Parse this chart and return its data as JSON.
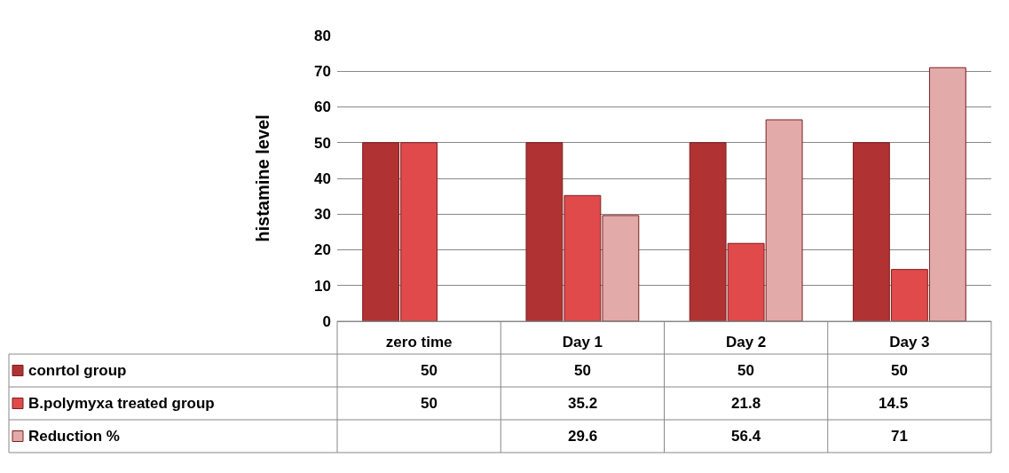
{
  "chart_data": {
    "type": "bar",
    "ylabel": "histamine level",
    "categories": [
      "zero time",
      "Day 1",
      "Day 2",
      "Day 3"
    ],
    "series": [
      {
        "name": "conrtol group",
        "color": "#b03232",
        "values": [
          50,
          50,
          50,
          50
        ]
      },
      {
        "name": "B.polymyxa treated group",
        "color": "#e04a4a",
        "values": [
          50,
          35.2,
          21.8,
          14.5
        ]
      },
      {
        "name": "Reduction %",
        "color": "#e3aaaa",
        "values": [
          null,
          29.6,
          56.4,
          71
        ]
      }
    ],
    "ylim": [
      0,
      80
    ],
    "yticks": [
      0,
      10,
      20,
      30,
      40,
      50,
      60,
      70,
      80
    ],
    "grid": "y",
    "data_labels": true,
    "legend": "bottom left"
  }
}
